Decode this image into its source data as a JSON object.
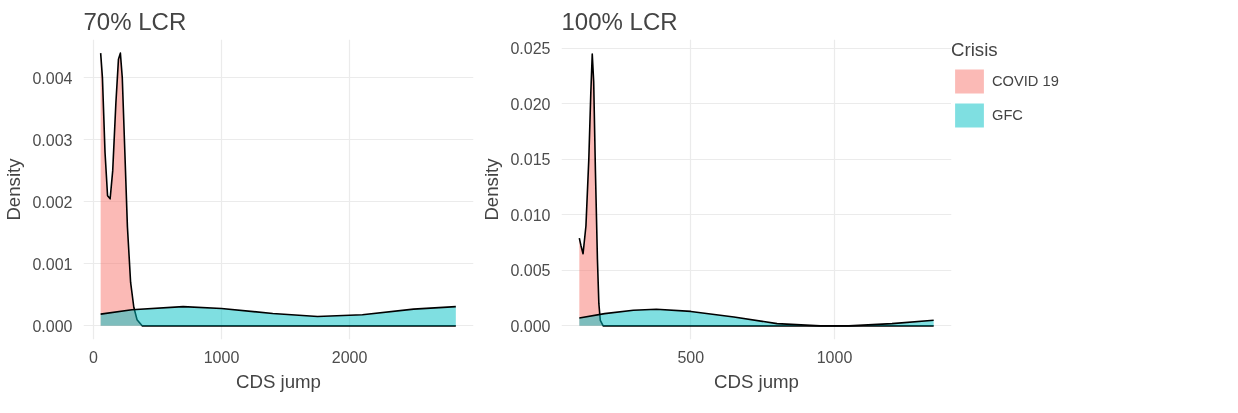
{
  "chart_data": [
    {
      "type": "area",
      "title": "70% LCR",
      "xlabel": "CDS jump",
      "ylabel": "Density",
      "xlim": [
        -78,
        2968
      ],
      "ylim": [
        -0.00022,
        0.00462
      ],
      "xticks": [
        0,
        1000,
        2000
      ],
      "yticks": [
        {
          "value": 0,
          "label": "0.000"
        },
        {
          "value": 0.001,
          "label": "0.001"
        },
        {
          "value": 0.002,
          "label": "0.002"
        },
        {
          "value": 0.003,
          "label": "0.003"
        },
        {
          "value": 0.004,
          "label": "0.004"
        }
      ],
      "grid": true,
      "series": [
        {
          "color": "#f8766d",
          "x": [
            56,
            70,
            90,
            110,
            130,
            150,
            175,
            195,
            210,
            225,
            245,
            265,
            290,
            315,
            340,
            380,
            500,
            2830
          ],
          "values": [
            0.0044,
            0.004,
            0.0028,
            0.0021,
            0.00205,
            0.0025,
            0.0036,
            0.0043,
            0.0044,
            0.004,
            0.0028,
            0.0016,
            0.0007,
            0.0003,
            0.0001,
            0,
            0,
            0
          ]
        },
        {
          "color": "#00bfc4",
          "x": [
            56,
            300,
            700,
            1000,
            1400,
            1750,
            2100,
            2500,
            2830
          ],
          "values": [
            0.00019,
            0.00026,
            0.00031,
            0.00028,
            0.0002,
            0.00015,
            0.00018,
            0.00027,
            0.00031
          ]
        }
      ]
    },
    {
      "type": "area",
      "title": "100% LCR",
      "xlabel": "CDS jump",
      "ylabel": "Density",
      "legend_title": "Crisis",
      "legend": "right",
      "xlim": [
        50,
        1407
      ],
      "ylim": [
        -0.00123,
        0.0258
      ],
      "xticks": [
        500,
        1000
      ],
      "yticks": [
        {
          "value": 0,
          "label": "0.000"
        },
        {
          "value": 0.005,
          "label": "0.005"
        },
        {
          "value": 0.01,
          "label": "0.010"
        },
        {
          "value": 0.015,
          "label": "0.015"
        },
        {
          "value": 0.02,
          "label": "0.020"
        },
        {
          "value": 0.025,
          "label": "0.025"
        }
      ],
      "grid": true,
      "series": [
        {
          "name": "COVID 19",
          "color": "#f8766d",
          "x": [
            112,
            118,
            125,
            135,
            145,
            152,
            157,
            162,
            168,
            175,
            180,
            185,
            195,
            300,
            1345
          ],
          "values": [
            0.0079,
            0.0072,
            0.0065,
            0.009,
            0.015,
            0.021,
            0.0245,
            0.022,
            0.014,
            0.006,
            0.002,
            0.0005,
            0,
            0,
            0
          ]
        },
        {
          "name": "GFC",
          "color": "#00bfc4",
          "x": [
            112,
            200,
            300,
            380,
            500,
            650,
            800,
            950,
            1050,
            1200,
            1345
          ],
          "values": [
            0.0007,
            0.0011,
            0.0014,
            0.0015,
            0.0013,
            0.0008,
            0.0002,
            0,
            0,
            0.0002,
            0.0005
          ]
        }
      ]
    }
  ]
}
